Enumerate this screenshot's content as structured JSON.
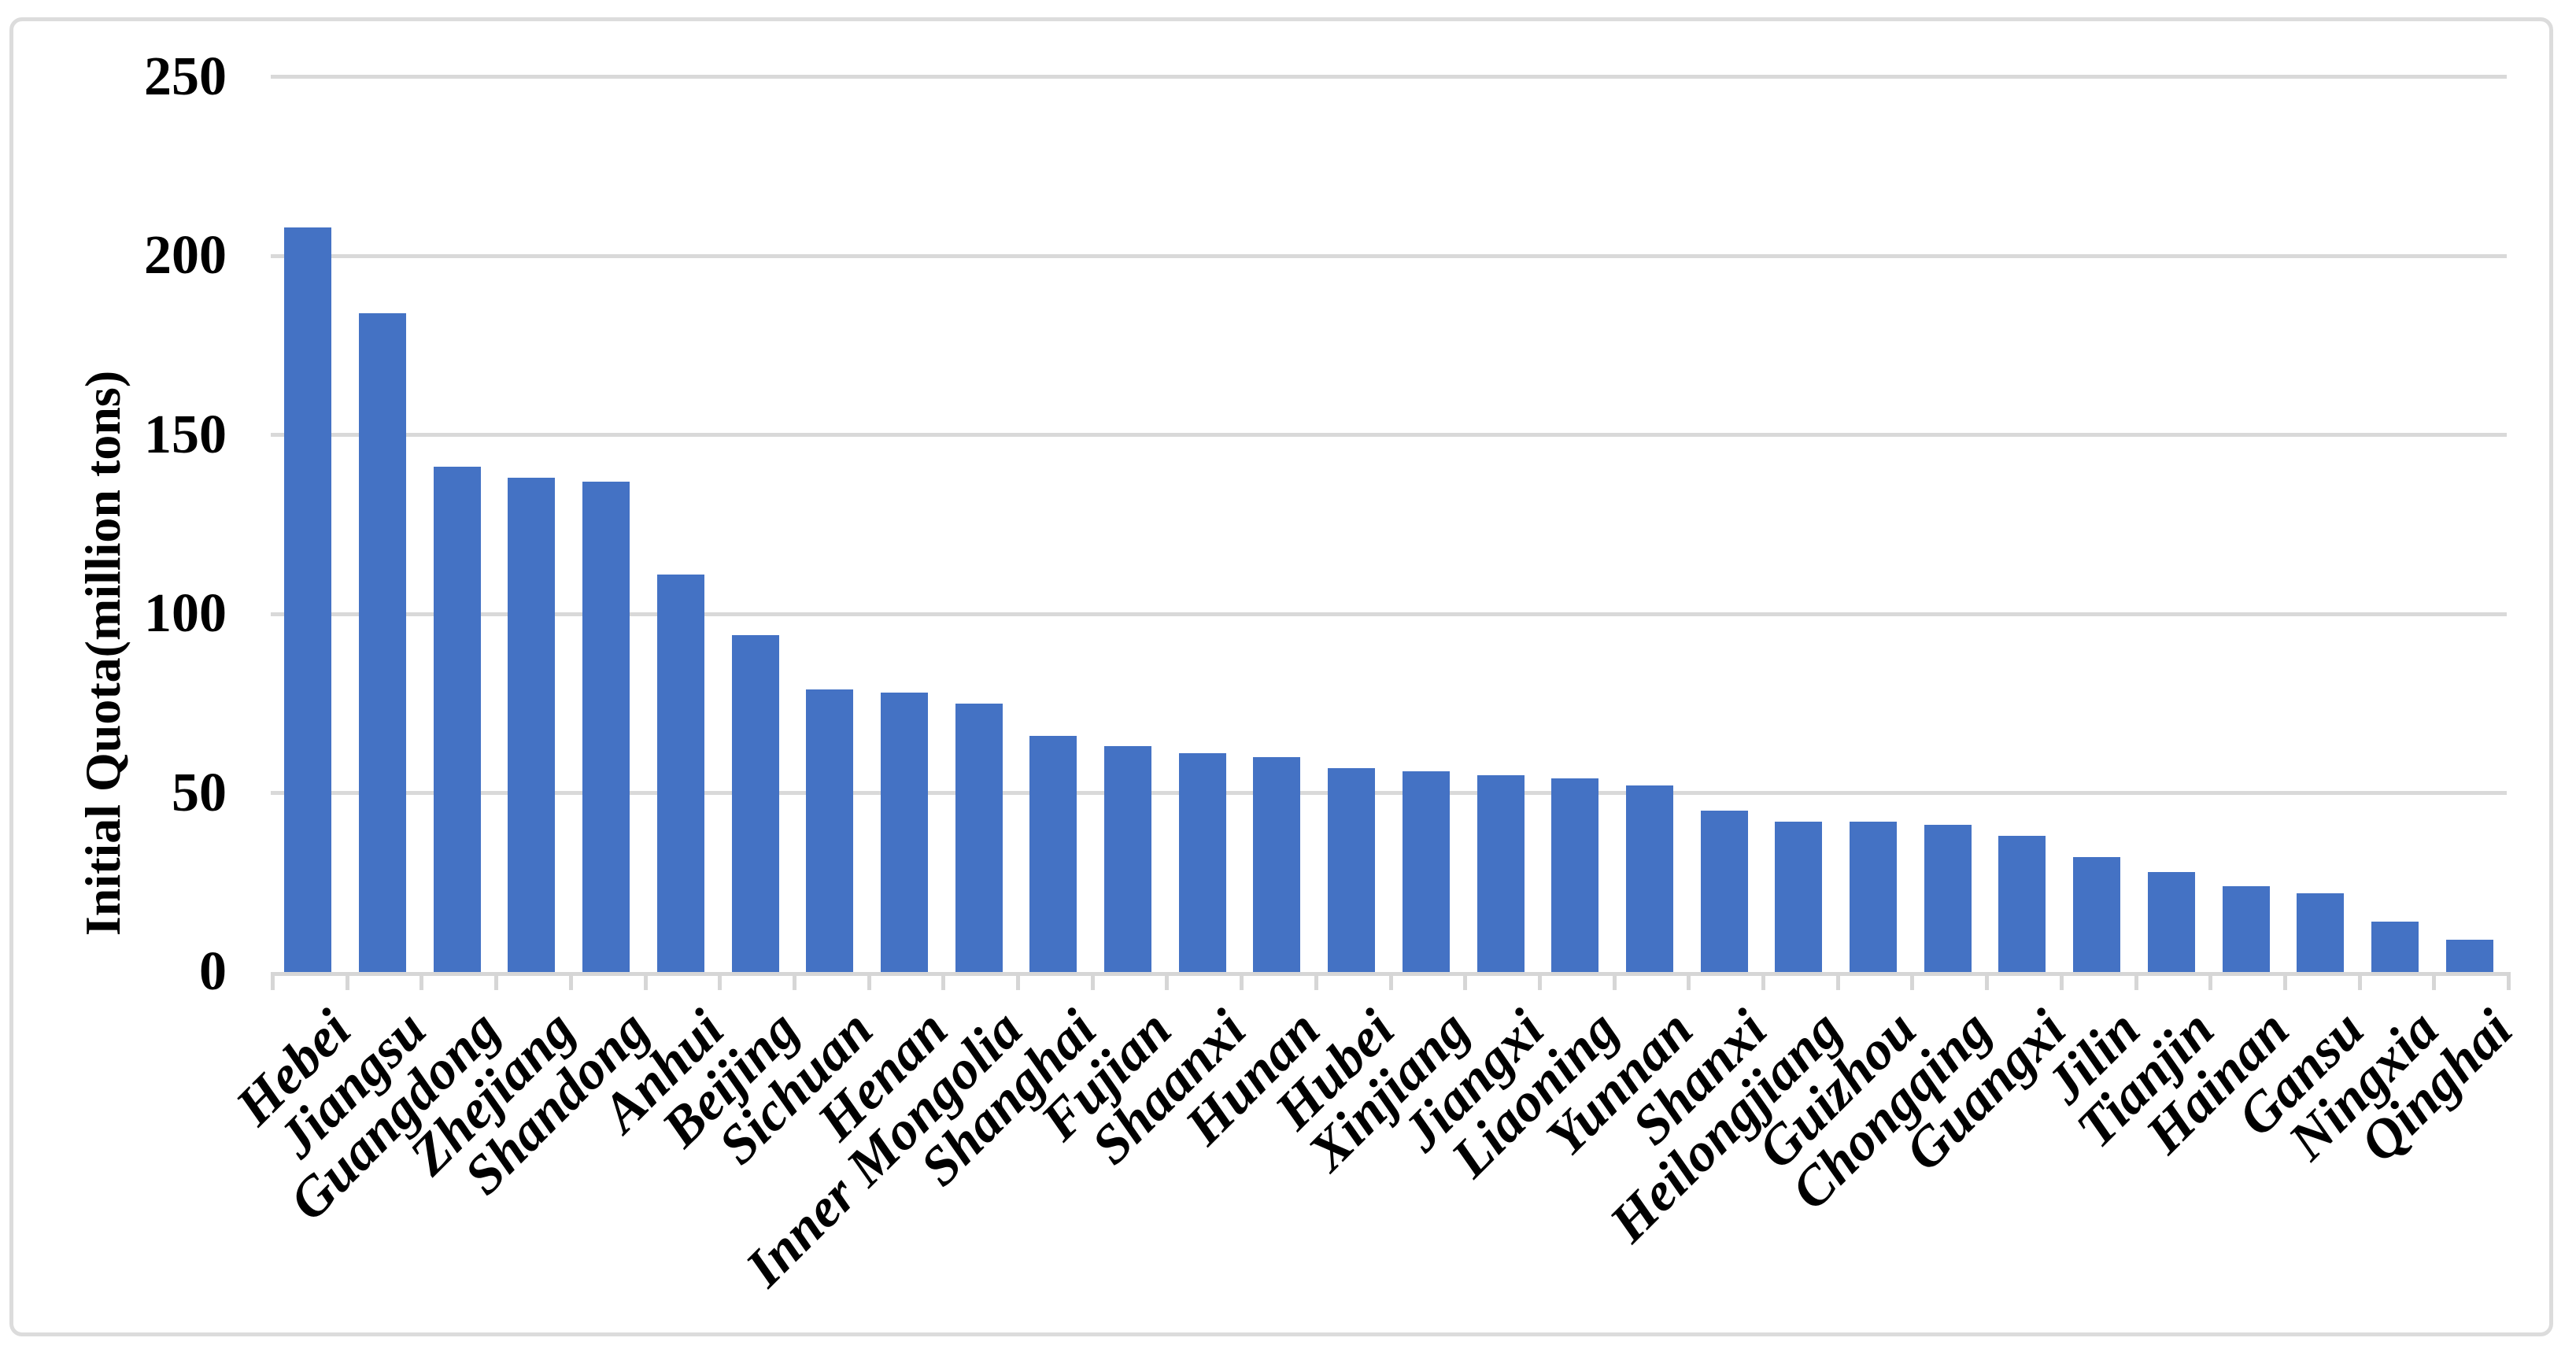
{
  "figure": {
    "background_color": "#ffffff",
    "frame_color": "#dcdcdc"
  },
  "chart_data": {
    "type": "bar",
    "title": "",
    "xlabel": "",
    "ylabel": "Initial Quota(million tons)",
    "categories": [
      "Hebei",
      "Jiangsu",
      "Guangdong",
      "Zhejiang",
      "Shandong",
      "Anhui",
      "Beijing",
      "Sichuan",
      "Henan",
      "Inner Mongolia",
      "Shanghai",
      "Fujian",
      "Shaanxi",
      "Hunan",
      "Hubei",
      "Xinjiang",
      "Jiangxi",
      "Liaoning",
      "Yunnan",
      "Shanxi",
      "Heilongjiang",
      "Guizhou",
      "Chongqing",
      "Guangxi",
      "Jilin",
      "Tianjin",
      "Hainan",
      "Gansu",
      "Ningxia",
      "Qinghai"
    ],
    "values": [
      208,
      184,
      141,
      138,
      137,
      111,
      94,
      79,
      78,
      75,
      66,
      63,
      61,
      60,
      57,
      56,
      55,
      54,
      52,
      45,
      42,
      42,
      41,
      38,
      32,
      28,
      24,
      22,
      14,
      9
    ],
    "ylim": [
      0,
      250
    ],
    "yticks": [
      0,
      50,
      100,
      150,
      200,
      250
    ],
    "grid": "horizontal",
    "legend": null,
    "bar_color": "#4472C4",
    "gridline_color": "#d9d9d9",
    "axis_color": "#d6d6d6",
    "tick_label_color": "#000000"
  }
}
